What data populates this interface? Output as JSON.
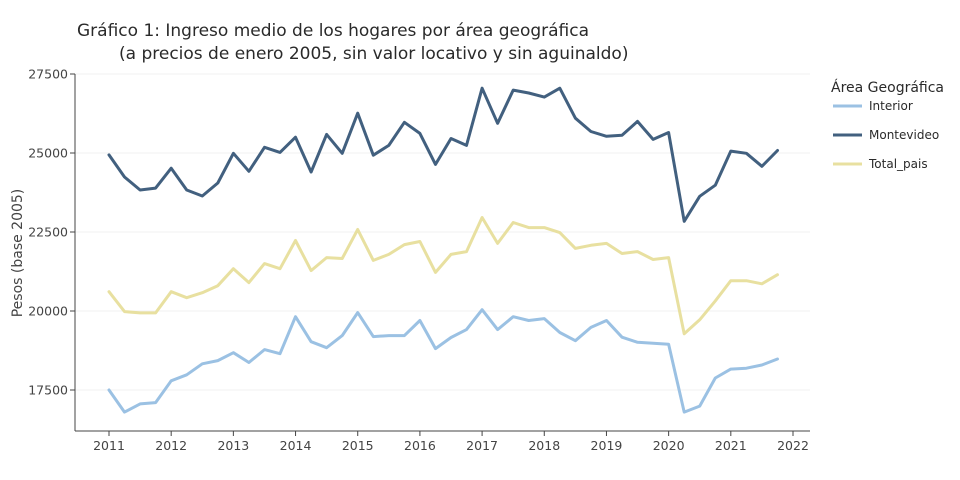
{
  "chart_data": {
    "type": "line",
    "title": "Gráfico 1: Ingreso medio de los hogares por área geográfica",
    "subtitle": "(a precios de enero 2005, sin valor locativo y sin aguinaldo)",
    "xlabel": "",
    "ylabel": "Pesos (base 2005)",
    "xlim": [
      2010.8,
      2022.3
    ],
    "ylim": [
      16300,
      27600
    ],
    "x_ticks": [
      2011,
      2012,
      2013,
      2014,
      2015,
      2016,
      2017,
      2018,
      2019,
      2020,
      2021,
      2022
    ],
    "x_tick_labels": [
      "2011",
      "2012",
      "2013",
      "2014",
      "2015",
      "2016",
      "2017",
      "2018",
      "2019",
      "2020",
      "2021",
      "2022"
    ],
    "y_ticks": [
      17500,
      20000,
      22500,
      25000,
      27500
    ],
    "y_tick_labels": [
      "17500",
      "20000",
      "22500",
      "25000",
      "27500"
    ],
    "grid": true,
    "legend": {
      "title": "Área Geográfica",
      "position": "right"
    },
    "x": [
      2011.0,
      2011.25,
      2011.5,
      2011.75,
      2012.0,
      2012.25,
      2012.5,
      2012.75,
      2013.0,
      2013.25,
      2013.5,
      2013.75,
      2014.0,
      2014.25,
      2014.5,
      2014.75,
      2015.0,
      2015.25,
      2015.5,
      2015.75,
      2016.0,
      2016.25,
      2016.5,
      2016.75,
      2017.0,
      2017.25,
      2017.5,
      2017.75,
      2018.0,
      2018.25,
      2018.5,
      2018.75,
      2019.0,
      2019.25,
      2019.5,
      2019.75,
      2020.0,
      2020.25,
      2020.5,
      2020.75,
      2021.0,
      2021.25,
      2021.5,
      2021.75
    ],
    "series": [
      {
        "name": "Interior",
        "color": "#9bc1e3",
        "values": [
          17500,
          16800,
          17060,
          17100,
          17790,
          17980,
          18330,
          18430,
          18680,
          18370,
          18780,
          18650,
          19820,
          19030,
          18840,
          19220,
          19950,
          19190,
          19220,
          19220,
          19700,
          18810,
          19160,
          19410,
          20040,
          19410,
          19820,
          19700,
          19760,
          19320,
          19060,
          19480,
          19700,
          19170,
          19010,
          18980,
          18950,
          16800,
          16990,
          17880,
          18160,
          18190,
          18290,
          18480
        ]
      },
      {
        "name": "Montevideo",
        "color": "#42607f",
        "values": [
          24940,
          24240,
          23830,
          23890,
          24520,
          23830,
          23640,
          24050,
          24990,
          24420,
          25180,
          25020,
          25500,
          24400,
          25590,
          24990,
          26260,
          24930,
          25240,
          25970,
          25620,
          24640,
          25460,
          25240,
          27050,
          25940,
          26990,
          26900,
          26770,
          27050,
          26100,
          25680,
          25530,
          25560,
          26000,
          25430,
          25650,
          22840,
          23630,
          23980,
          25060,
          24990,
          24580,
          25080
        ]
      },
      {
        "name": "Total_pais",
        "color": "#e8e0a0",
        "values": [
          20610,
          19980,
          19940,
          19940,
          20610,
          20420,
          20580,
          20800,
          21340,
          20900,
          21500,
          21340,
          22230,
          21280,
          21690,
          21660,
          22580,
          21600,
          21790,
          22100,
          22200,
          21220,
          21790,
          21880,
          22960,
          22140,
          22800,
          22640,
          22640,
          22480,
          21980,
          22080,
          22140,
          21820,
          21880,
          21630,
          21690,
          19280,
          19720,
          20320,
          20960,
          20960,
          20860,
          21150
        ]
      }
    ]
  }
}
